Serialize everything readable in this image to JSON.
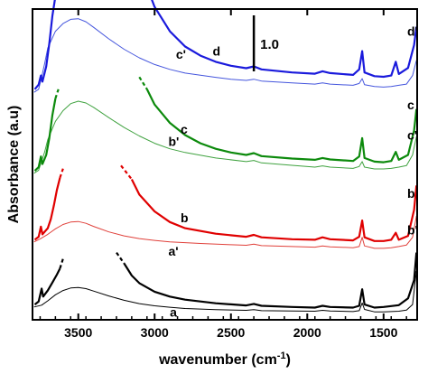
{
  "chart_data": {
    "type": "line",
    "xlabel": "wavenumber (cm",
    "xlabel_sup": "-1",
    "xlabel_end": ")",
    "ylabel": "Absorbance (a.u)",
    "xlim": [
      3800,
      1280
    ],
    "x_reversed": true,
    "xticks": [
      3500,
      3000,
      2500,
      2000,
      1500
    ],
    "xtick_labels": [
      "3500",
      "3000",
      "2500",
      "2000",
      "1500"
    ],
    "y_tick_labels_shown": false,
    "ylim": [
      0,
      10
    ],
    "scale_bar": {
      "label": "1.0",
      "value": 1.0
    },
    "series": [
      {
        "key": "a",
        "label": "a",
        "color": "#000000",
        "thin": true,
        "points": [
          [
            3790,
            0.42
          ],
          [
            3740,
            0.48
          ],
          [
            3700,
            0.62
          ],
          [
            3650,
            0.82
          ],
          [
            3600,
            0.96
          ],
          [
            3550,
            1.04
          ],
          [
            3500,
            1.06
          ],
          [
            3450,
            1.02
          ],
          [
            3400,
            0.94
          ],
          [
            3300,
            0.78
          ],
          [
            3200,
            0.64
          ],
          [
            3100,
            0.53
          ],
          [
            3000,
            0.46
          ],
          [
            2900,
            0.41
          ],
          [
            2800,
            0.37
          ],
          [
            2600,
            0.33
          ],
          [
            2400,
            0.31
          ],
          [
            2350,
            0.33
          ],
          [
            2300,
            0.3
          ],
          [
            2100,
            0.29
          ],
          [
            1950,
            0.28
          ],
          [
            1900,
            0.31
          ],
          [
            1850,
            0.29
          ],
          [
            1700,
            0.27
          ],
          [
            1660,
            0.3
          ],
          [
            1640,
            0.55
          ],
          [
            1625,
            0.34
          ],
          [
            1560,
            0.26
          ],
          [
            1500,
            0.26
          ],
          [
            1450,
            0.27
          ],
          [
            1400,
            0.28
          ],
          [
            1350,
            0.32
          ],
          [
            1310,
            0.5
          ],
          [
            1285,
            1.6
          ]
        ]
      },
      {
        "key": "a'",
        "label": "a'",
        "color": "#000000",
        "thin": false,
        "points": [
          [
            3785,
            0.5
          ],
          [
            3760,
            0.6
          ],
          [
            3740,
            1.02
          ],
          [
            3730,
            0.76
          ],
          [
            3700,
            0.96
          ],
          [
            3670,
            1.22
          ],
          [
            3640,
            1.48
          ],
          [
            3620,
            1.68
          ]
        ],
        "dashed_points": [
          [
            3620,
            1.68
          ],
          [
            3600,
            2.0
          ]
        ],
        "tail_points": [
          [
            3200,
            1.85
          ],
          [
            3150,
            1.45
          ],
          [
            3100,
            1.2
          ],
          [
            3000,
            0.92
          ],
          [
            2900,
            0.76
          ],
          [
            2800,
            0.66
          ],
          [
            2600,
            0.54
          ],
          [
            2400,
            0.47
          ],
          [
            2350,
            0.52
          ],
          [
            2300,
            0.46
          ],
          [
            2100,
            0.42
          ],
          [
            1950,
            0.4
          ],
          [
            1900,
            0.46
          ],
          [
            1850,
            0.42
          ],
          [
            1700,
            0.4
          ],
          [
            1660,
            0.46
          ],
          [
            1640,
            1.0
          ],
          [
            1625,
            0.5
          ],
          [
            1560,
            0.4
          ],
          [
            1500,
            0.42
          ],
          [
            1400,
            0.48
          ],
          [
            1340,
            0.7
          ],
          [
            1300,
            1.3
          ],
          [
            1285,
            2.2
          ]
        ],
        "tail_dashed_points": [
          [
            3250,
            2.2
          ],
          [
            3200,
            1.85
          ]
        ]
      },
      {
        "key": "b",
        "label": "b",
        "color": "#e0403a",
        "thin": true,
        "points": [
          [
            3790,
            2.55
          ],
          [
            3750,
            2.65
          ],
          [
            3700,
            2.8
          ],
          [
            3650,
            2.98
          ],
          [
            3600,
            3.12
          ],
          [
            3550,
            3.2
          ],
          [
            3500,
            3.22
          ],
          [
            3450,
            3.16
          ],
          [
            3400,
            3.06
          ],
          [
            3300,
            2.88
          ],
          [
            3200,
            2.75
          ],
          [
            3100,
            2.66
          ],
          [
            3000,
            2.6
          ],
          [
            2900,
            2.55
          ],
          [
            2700,
            2.5
          ],
          [
            2500,
            2.46
          ],
          [
            2400,
            2.44
          ],
          [
            2350,
            2.48
          ],
          [
            2300,
            2.43
          ],
          [
            2100,
            2.4
          ],
          [
            1950,
            2.38
          ],
          [
            1900,
            2.42
          ],
          [
            1850,
            2.39
          ],
          [
            1700,
            2.36
          ],
          [
            1660,
            2.4
          ],
          [
            1640,
            2.7
          ],
          [
            1625,
            2.42
          ],
          [
            1560,
            2.34
          ],
          [
            1500,
            2.34
          ],
          [
            1450,
            2.36
          ],
          [
            1400,
            2.4
          ],
          [
            1350,
            2.45
          ],
          [
            1310,
            2.7
          ],
          [
            1285,
            3.4
          ]
        ]
      },
      {
        "key": "b'",
        "label": "b'",
        "color": "#e00000",
        "thin": false,
        "points": [
          [
            3785,
            2.62
          ],
          [
            3760,
            2.72
          ],
          [
            3745,
            3.05
          ],
          [
            3735,
            2.8
          ],
          [
            3700,
            3.0
          ],
          [
            3680,
            3.3
          ],
          [
            3660,
            3.75
          ],
          [
            3640,
            4.25
          ],
          [
            3620,
            4.65
          ]
        ],
        "dashed_points": [
          [
            3620,
            4.65
          ],
          [
            3600,
            4.95
          ]
        ],
        "tail_points": [
          [
            3150,
            4.6
          ],
          [
            3100,
            4.1
          ],
          [
            3000,
            3.55
          ],
          [
            2900,
            3.2
          ],
          [
            2800,
            3.0
          ],
          [
            2600,
            2.82
          ],
          [
            2400,
            2.72
          ],
          [
            2350,
            2.78
          ],
          [
            2300,
            2.7
          ],
          [
            2100,
            2.64
          ],
          [
            1950,
            2.62
          ],
          [
            1900,
            2.7
          ],
          [
            1850,
            2.64
          ],
          [
            1700,
            2.6
          ],
          [
            1660,
            2.72
          ],
          [
            1640,
            3.25
          ],
          [
            1625,
            2.7
          ],
          [
            1560,
            2.58
          ],
          [
            1500,
            2.58
          ],
          [
            1450,
            2.62
          ],
          [
            1420,
            2.85
          ],
          [
            1400,
            2.62
          ],
          [
            1340,
            2.75
          ],
          [
            1300,
            3.6
          ],
          [
            1285,
            4.4
          ]
        ],
        "tail_dashed_points": [
          [
            3220,
            5.05
          ],
          [
            3150,
            4.6
          ]
        ]
      },
      {
        "key": "c",
        "label": "c",
        "color": "#3fa23f",
        "thin": true,
        "points": [
          [
            3790,
            4.8
          ],
          [
            3760,
            4.9
          ],
          [
            3740,
            5.2
          ],
          [
            3720,
            5.5
          ],
          [
            3700,
            5.9
          ],
          [
            3650,
            6.5
          ],
          [
            3600,
            6.85
          ],
          [
            3550,
            7.08
          ],
          [
            3500,
            7.16
          ],
          [
            3450,
            7.1
          ],
          [
            3400,
            6.96
          ],
          [
            3300,
            6.62
          ],
          [
            3200,
            6.3
          ],
          [
            3100,
            6.02
          ],
          [
            3000,
            5.78
          ],
          [
            2900,
            5.6
          ],
          [
            2800,
            5.48
          ],
          [
            2600,
            5.3
          ],
          [
            2400,
            5.18
          ],
          [
            2350,
            5.22
          ],
          [
            2300,
            5.14
          ],
          [
            2100,
            5.06
          ],
          [
            1950,
            5.0
          ],
          [
            1900,
            5.04
          ],
          [
            1850,
            5.0
          ],
          [
            1700,
            4.96
          ],
          [
            1660,
            5.02
          ],
          [
            1640,
            5.18
          ],
          [
            1625,
            5.0
          ],
          [
            1560,
            4.94
          ],
          [
            1500,
            4.94
          ],
          [
            1450,
            4.96
          ],
          [
            1400,
            5.0
          ],
          [
            1350,
            5.05
          ],
          [
            1310,
            5.4
          ],
          [
            1285,
            6.0
          ]
        ]
      },
      {
        "key": "c'",
        "label": "c'",
        "color": "#0c8a0c",
        "thin": false,
        "points": [
          [
            3785,
            4.88
          ],
          [
            3760,
            5.0
          ],
          [
            3745,
            5.35
          ],
          [
            3735,
            5.1
          ],
          [
            3710,
            5.4
          ],
          [
            3690,
            5.95
          ],
          [
            3670,
            6.7
          ],
          [
            3650,
            7.25
          ]
        ],
        "dashed_points": [
          [
            3650,
            7.25
          ],
          [
            3630,
            7.55
          ]
        ],
        "tail_points": [
          [
            3050,
            7.55
          ],
          [
            3000,
            7.05
          ],
          [
            2900,
            6.45
          ],
          [
            2800,
            6.05
          ],
          [
            2700,
            5.78
          ],
          [
            2600,
            5.6
          ],
          [
            2500,
            5.48
          ],
          [
            2400,
            5.4
          ],
          [
            2350,
            5.46
          ],
          [
            2300,
            5.36
          ],
          [
            2100,
            5.28
          ],
          [
            1950,
            5.24
          ],
          [
            1900,
            5.3
          ],
          [
            1850,
            5.25
          ],
          [
            1700,
            5.2
          ],
          [
            1660,
            5.35
          ],
          [
            1640,
            5.95
          ],
          [
            1625,
            5.3
          ],
          [
            1560,
            5.18
          ],
          [
            1500,
            5.16
          ],
          [
            1450,
            5.2
          ],
          [
            1420,
            5.5
          ],
          [
            1400,
            5.24
          ],
          [
            1340,
            5.4
          ],
          [
            1300,
            6.2
          ],
          [
            1285,
            6.9
          ]
        ],
        "tail_dashed_points": [
          [
            3100,
            7.95
          ],
          [
            3050,
            7.55
          ]
        ]
      },
      {
        "key": "d",
        "label": "d",
        "color": "#4455dd",
        "thin": true,
        "points": [
          [
            3790,
            7.45
          ],
          [
            3760,
            7.55
          ],
          [
            3740,
            7.95
          ],
          [
            3720,
            8.4
          ],
          [
            3700,
            8.9
          ],
          [
            3650,
            9.45
          ],
          [
            3600,
            9.7
          ],
          [
            3550,
            9.84
          ],
          [
            3500,
            9.86
          ],
          [
            3450,
            9.76
          ],
          [
            3400,
            9.58
          ],
          [
            3300,
            9.2
          ],
          [
            3200,
            8.86
          ],
          [
            3100,
            8.58
          ],
          [
            3000,
            8.36
          ],
          [
            2900,
            8.2
          ],
          [
            2800,
            8.08
          ],
          [
            2600,
            7.94
          ],
          [
            2500,
            7.88
          ],
          [
            2400,
            7.84
          ],
          [
            2350,
            7.88
          ],
          [
            2300,
            7.82
          ],
          [
            2100,
            7.76
          ],
          [
            1950,
            7.72
          ],
          [
            1900,
            7.76
          ],
          [
            1850,
            7.72
          ],
          [
            1700,
            7.68
          ],
          [
            1660,
            7.74
          ],
          [
            1640,
            7.9
          ],
          [
            1625,
            7.7
          ],
          [
            1560,
            7.64
          ],
          [
            1500,
            7.62
          ],
          [
            1450,
            7.64
          ],
          [
            1400,
            7.68
          ],
          [
            1350,
            7.72
          ],
          [
            1310,
            8.0
          ],
          [
            1285,
            8.5
          ]
        ]
      },
      {
        "key": "d'",
        "label": "d'",
        "color": "#1a1adc",
        "thin": false,
        "points": [
          [
            3785,
            7.55
          ],
          [
            3760,
            7.7
          ],
          [
            3745,
            8.0
          ],
          [
            3735,
            7.8
          ],
          [
            3710,
            8.3
          ],
          [
            3690,
            9.05
          ],
          [
            3670,
            9.95
          ],
          [
            3650,
            10.6
          ]
        ],
        "dashed_points": [
          [
            3650,
            10.6
          ],
          [
            3630,
            10.95
          ]
        ],
        "tail_points": [
          [
            3050,
            10.9
          ],
          [
            3000,
            10.25
          ],
          [
            2900,
            9.45
          ],
          [
            2800,
            8.95
          ],
          [
            2700,
            8.65
          ],
          [
            2600,
            8.45
          ],
          [
            2500,
            8.32
          ],
          [
            2400,
            8.24
          ],
          [
            2350,
            8.3
          ],
          [
            2300,
            8.2
          ],
          [
            2100,
            8.1
          ],
          [
            1950,
            8.06
          ],
          [
            1900,
            8.14
          ],
          [
            1850,
            8.08
          ],
          [
            1700,
            8.02
          ],
          [
            1660,
            8.2
          ],
          [
            1640,
            8.8
          ],
          [
            1625,
            8.1
          ],
          [
            1560,
            7.98
          ],
          [
            1500,
            7.96
          ],
          [
            1450,
            8.0
          ],
          [
            1420,
            8.45
          ],
          [
            1400,
            8.05
          ],
          [
            1340,
            8.25
          ],
          [
            1300,
            9.0
          ],
          [
            1285,
            9.6
          ]
        ],
        "tail_dashed_points": [
          [
            3120,
            11.35
          ],
          [
            3050,
            10.9
          ]
        ]
      }
    ]
  }
}
